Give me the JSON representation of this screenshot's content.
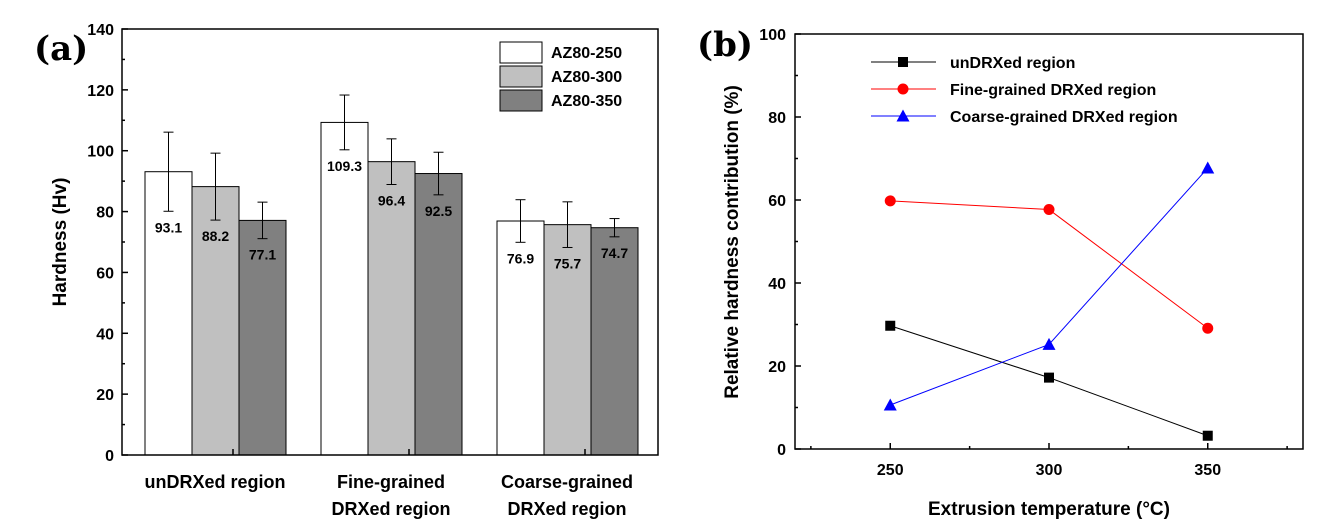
{
  "chart_data": [
    {
      "type": "bar",
      "panel_label": "(a)",
      "categories": [
        {
          "line1": "unDRXed region",
          "line2": ""
        },
        {
          "line1": "Fine-grained",
          "line2": "DRXed region"
        },
        {
          "line1": "Coarse-grained",
          "line2": "DRXed region"
        }
      ],
      "series": [
        {
          "name": "AZ80-250",
          "color": "#ffffff",
          "values": [
            93.1,
            109.3,
            76.9
          ],
          "errors": [
            13,
            9,
            7
          ]
        },
        {
          "name": "AZ80-300",
          "color": "#c0c0c0",
          "values": [
            88.2,
            96.4,
            75.7
          ],
          "errors": [
            11,
            7.5,
            7.5
          ]
        },
        {
          "name": "AZ80-350",
          "color": "#808080",
          "values": [
            77.1,
            92.5,
            74.7
          ],
          "errors": [
            6,
            7,
            3
          ]
        }
      ],
      "value_labels": [
        [
          "93.1",
          "109.3",
          "76.9"
        ],
        [
          "88.2",
          "96.4",
          "75.7"
        ],
        [
          "77.1",
          "92.5",
          "74.7"
        ]
      ],
      "xlabel": "",
      "ylabel": "Hardness (Hv)",
      "ylim": [
        0,
        140
      ],
      "yticks": [
        0,
        20,
        40,
        60,
        80,
        100,
        120,
        140
      ],
      "legend_position": "top-right"
    },
    {
      "type": "line",
      "panel_label": "(b)",
      "x": [
        250,
        300,
        350
      ],
      "series": [
        {
          "name": "unDRXed region",
          "color": "#000000",
          "marker": "square",
          "values": [
            29.7,
            17.2,
            3.2
          ]
        },
        {
          "name": "Fine-grained DRXed region",
          "color": "#ff0000",
          "marker": "circle",
          "values": [
            59.8,
            57.7,
            29.1
          ]
        },
        {
          "name": "Coarse-grained DRXed region",
          "color": "#0000ff",
          "marker": "triangle",
          "values": [
            10.6,
            25.2,
            67.7
          ]
        }
      ],
      "xlabel": "Extrusion temperature (°C)",
      "ylabel": "Relative hardness contribution (%)",
      "xlim": [
        220,
        380
      ],
      "xticks": [
        250,
        300,
        350
      ],
      "ylim": [
        0,
        100
      ],
      "yticks": [
        0,
        20,
        40,
        60,
        80,
        100
      ],
      "legend_position": "top-left"
    }
  ]
}
